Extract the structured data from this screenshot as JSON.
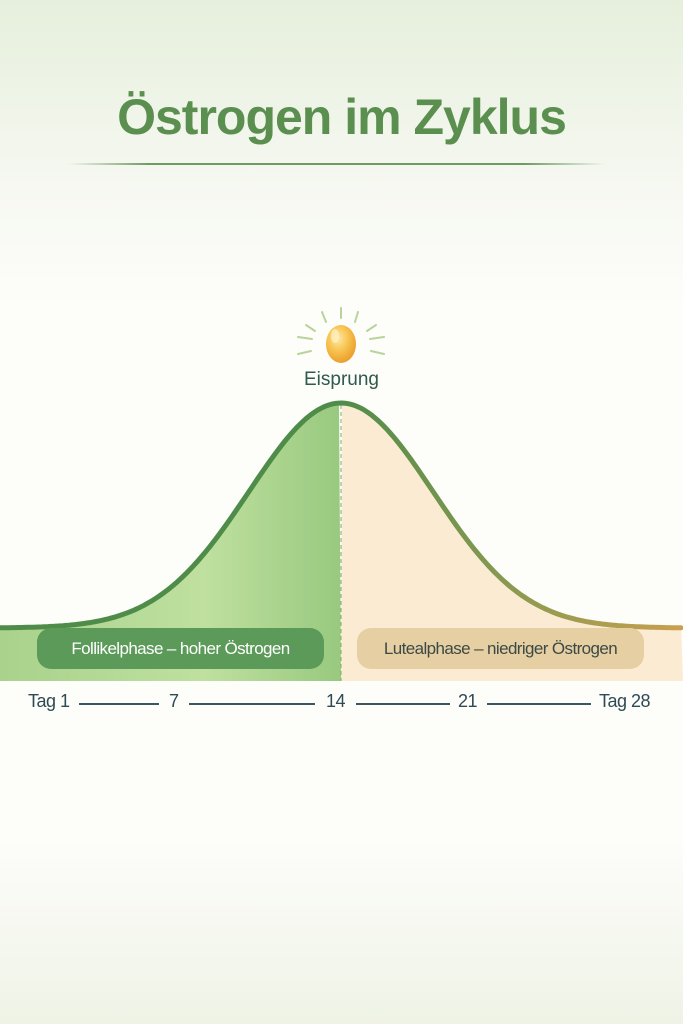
{
  "title": "Östrogen im Zyklus",
  "peak_label": "Eisprung",
  "phases": {
    "follicular": "Follikelphase – hoher Östrogen",
    "luteal": "Lutealphase – niedriger Östrogen"
  },
  "axis": {
    "ticks": [
      "Tag 1",
      "7",
      "14",
      "21",
      "Tag 28"
    ]
  },
  "colors": {
    "title": "#5a8f4f",
    "follicular": "#5b9a58",
    "follicular_fill": "#b5d99a",
    "luteal": "#e7cfa4",
    "luteal_fill": "#fcebd3",
    "curve_end": "#c9a050",
    "egg": "#f2b23a"
  },
  "icons": {
    "egg": "egg-with-rays-icon"
  }
}
